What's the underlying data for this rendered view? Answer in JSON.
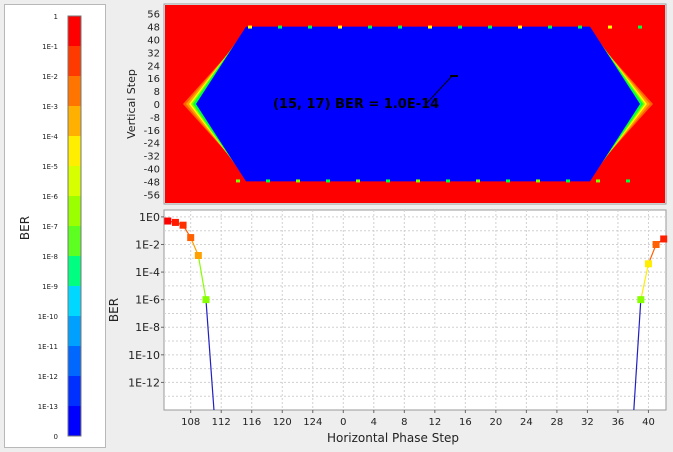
{
  "legend": {
    "title": "BER",
    "labels": [
      "1",
      "1E-1",
      "1E-2",
      "1E-3",
      "1E-4",
      "1E-5",
      "1E-6",
      "1E-7",
      "1E-8",
      "1E-9",
      "1E-10",
      "1E-11",
      "1E-12",
      "1E-13",
      "0"
    ],
    "colors": [
      "#ff0000",
      "#ff3a00",
      "#ff7500",
      "#ffb000",
      "#ffee00",
      "#d8ff00",
      "#9cff00",
      "#5cff20",
      "#00ff80",
      "#00d8ff",
      "#00a0ff",
      "#0068ff",
      "#0030ff",
      "#0000ff"
    ]
  },
  "chart_data": [
    {
      "type": "heatmap",
      "ylabel": "Vertical Step",
      "y_ticks": [
        "56",
        "48",
        "40",
        "32",
        "24",
        "16",
        "8",
        "0",
        "-8",
        "-16",
        "-24",
        "-32",
        "-40",
        "-48",
        "-56"
      ],
      "ylim": [
        -62,
        62
      ],
      "annotation": "(15, 17) BER = 1.0E-14",
      "annotation_point": [
        15,
        17
      ],
      "eye_opening": {
        "horizontal_phase_range": [
          "109",
          "38"
        ],
        "vertical_range": [
          -48,
          48
        ]
      },
      "colors": {
        "closed": "#ff0000",
        "open": "#0000ff",
        "edge": [
          "#ff6000",
          "#ffa000",
          "#ffff00",
          "#80ff00",
          "#00ff40"
        ]
      }
    },
    {
      "type": "line",
      "xlabel": "Horizontal Phase Step",
      "ylabel": "BER",
      "x_ticks": [
        "108",
        "112",
        "116",
        "120",
        "124",
        "0",
        "4",
        "8",
        "12",
        "16",
        "20",
        "24",
        "28",
        "32",
        "36",
        "40"
      ],
      "y_ticks": [
        "1E0",
        "1E-2",
        "1E-4",
        "1E-6",
        "1E-8",
        "1E-10",
        "1E-12"
      ],
      "log_scale_y": true,
      "ylim_exp": [
        -14,
        0.5
      ],
      "grid": true,
      "series": [
        {
          "points": [
            {
              "x": 105,
              "y_exp": -0.3,
              "color": "#ff0000"
            },
            {
              "x": 106,
              "y_exp": -0.4,
              "color": "#ff1a00"
            },
            {
              "x": 107,
              "y_exp": -0.6,
              "color": "#ff3000"
            },
            {
              "x": 108,
              "y_exp": -1.5,
              "color": "#ff6000"
            },
            {
              "x": 109,
              "y_exp": -2.8,
              "color": "#ffa000"
            },
            {
              "x": 110,
              "y_exp": -6.0,
              "color": "#88ff00"
            }
          ],
          "line_end_exp": -14
        },
        {
          "points": [
            {
              "x": 39,
              "y_exp": -6.0,
              "color": "#88ff00"
            },
            {
              "x": 40,
              "y_exp": -3.4,
              "color": "#ffee00"
            },
            {
              "x": 41,
              "y_exp": -2.0,
              "color": "#ff6000"
            },
            {
              "x": 42,
              "y_exp": -1.6,
              "color": "#ff2000"
            }
          ],
          "line_start_exp": -14
        }
      ]
    }
  ]
}
